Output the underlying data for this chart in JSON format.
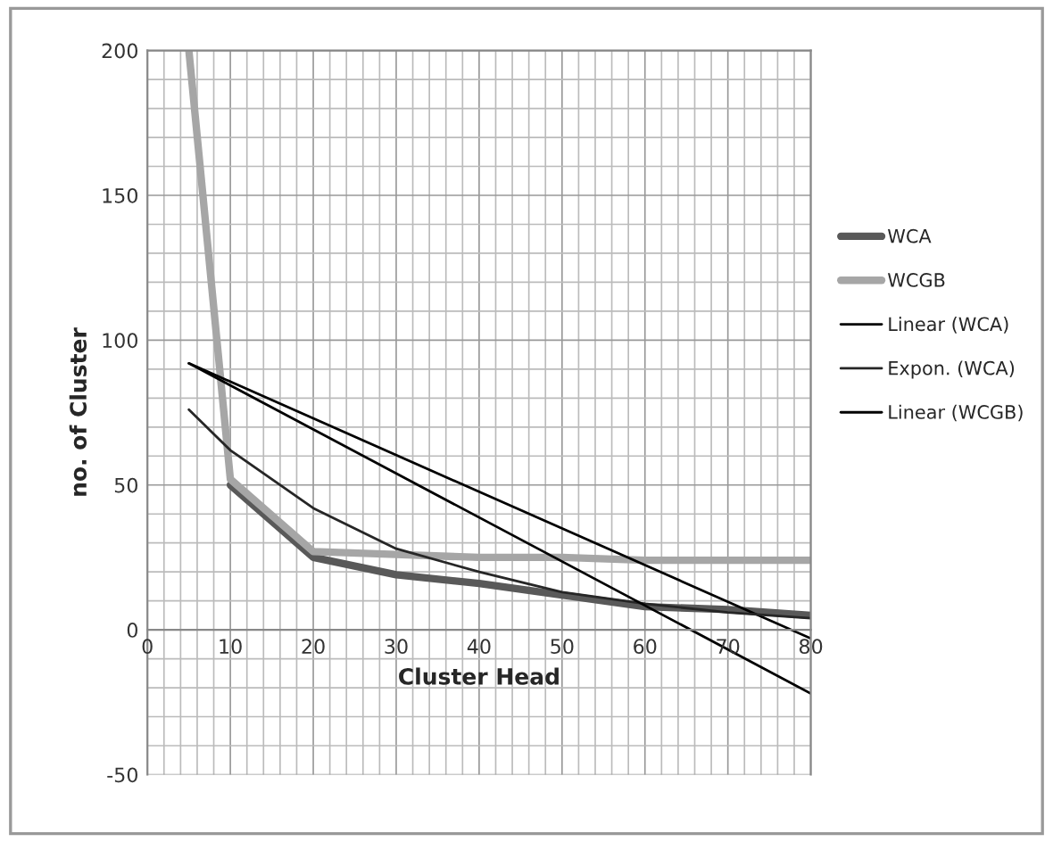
{
  "chart_data": {
    "type": "line",
    "xlabel": "Cluster Head",
    "ylabel": "no. of Cluster",
    "xlim": [
      0,
      80
    ],
    "xticks": [
      0,
      10,
      20,
      30,
      40,
      50,
      60,
      70,
      80
    ],
    "ylim": [
      -50,
      200
    ],
    "yticks": [
      -50,
      0,
      50,
      100,
      150,
      200
    ],
    "grid": true,
    "legend": "right",
    "marker": "none",
    "line_style": "solid",
    "series": [
      {
        "name": "WCA",
        "color": "#595959",
        "x": [
          10,
          20,
          30,
          40,
          50,
          60,
          70,
          80
        ],
        "values": [
          50,
          25,
          19,
          16,
          12,
          8,
          7,
          5
        ]
      },
      {
        "name": "WCGB",
        "color": "#a6a6a6",
        "x": [
          5,
          10,
          20,
          30,
          40,
          50,
          60,
          70,
          80
        ],
        "values": [
          200,
          52,
          27,
          26,
          25,
          25,
          24,
          24,
          24
        ]
      },
      {
        "name": "Linear (WCA)",
        "color": "#000000",
        "x": [
          5,
          80
        ],
        "values": [
          92,
          -3
        ]
      },
      {
        "name": "Expon. (WCA)",
        "color": "#262626",
        "x": [
          5,
          10,
          20,
          30,
          40,
          50,
          60,
          70,
          80
        ],
        "values": [
          76,
          62,
          42,
          28,
          20,
          13,
          9,
          6,
          4
        ]
      },
      {
        "name": "Linear (WCGB)",
        "color": "#000000",
        "x": [
          5,
          80
        ],
        "values": [
          92,
          -22
        ]
      }
    ]
  }
}
